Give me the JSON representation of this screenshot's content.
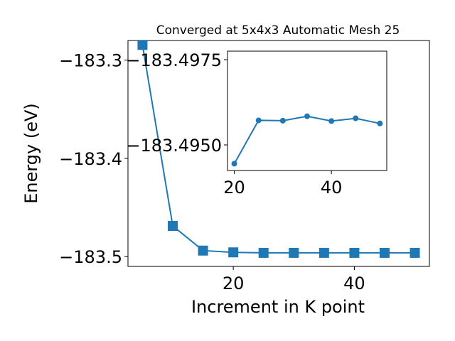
{
  "chart_data": [
    {
      "type": "line",
      "title": "Converged at 5x4x3 Automatic Mesh 25",
      "xlabel": "Increment in K point",
      "ylabel": "Energy (eV)",
      "x": [
        5,
        10,
        15,
        20,
        25,
        30,
        35,
        40,
        45,
        50
      ],
      "series": [
        {
          "values": [
            -183.2845,
            -183.4688,
            -183.4939,
            -183.4957,
            -183.4962,
            -183.4962,
            -183.4962,
            -183.4962,
            -183.4962,
            -183.4962
          ]
        }
      ],
      "xlim": [
        2.6,
        52.4
      ],
      "ylim": [
        -183.51,
        -183.28
      ],
      "xticks": [
        20,
        40
      ],
      "xtick_labels": [
        "20",
        "40"
      ],
      "yticks": [
        -183.3,
        -183.4,
        -183.5
      ],
      "ytick_labels": [
        "−183.3",
        "−183.4",
        "−183.5"
      ],
      "marker": "square",
      "color": "#1f77b4",
      "grid": false
    },
    {
      "type": "line",
      "inset": true,
      "x": [
        20,
        25,
        30,
        35,
        40,
        45,
        50
      ],
      "series": [
        {
          "values": [
            -183.49445,
            -183.49572,
            -183.49571,
            -183.49584,
            -183.4957,
            -183.49578,
            -183.49563
          ]
        }
      ],
      "xlim": [
        18.6,
        51.4
      ],
      "ylim": [
        -183.49425,
        -183.49775
      ],
      "xticks": [
        20,
        40
      ],
      "xtick_labels": [
        "20",
        "40"
      ],
      "yticks": [
        -183.4975,
        -183.495
      ],
      "ytick_labels": [
        "−183.4975",
        "−183.4950"
      ],
      "marker": "circle",
      "color": "#1f77b4",
      "grid": false
    }
  ]
}
